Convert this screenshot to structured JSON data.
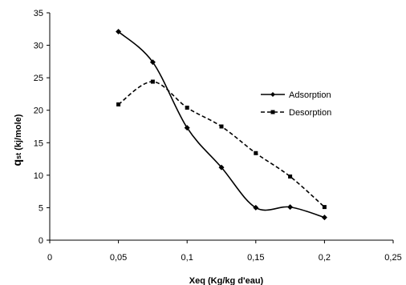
{
  "chart_data": {
    "type": "line",
    "xlabel": "Xeq (Kg/kg d'eau)",
    "ylabel_main": "q",
    "ylabel_sub": "st",
    "ylabel_rest": " (kj/mole)",
    "xlim": [
      0,
      0.25
    ],
    "ylim": [
      0,
      35
    ],
    "x_ticks": [
      0,
      0.05,
      0.1,
      0.15,
      0.2,
      0.25
    ],
    "x_tick_labels": [
      "0",
      "0,05",
      "0,1",
      "0,15",
      "0,2",
      "0,25"
    ],
    "y_ticks": [
      0,
      5,
      10,
      15,
      20,
      25,
      30,
      35
    ],
    "y_tick_labels": [
      "0",
      "5",
      "10",
      "15",
      "20",
      "25",
      "30",
      "35"
    ],
    "grid": false,
    "legend_position": "right",
    "series": [
      {
        "name": "Adsorption",
        "style": "solid",
        "marker": "diamond",
        "color": "#000000",
        "x": [
          0.05,
          0.075,
          0.1,
          0.125,
          0.15,
          0.175,
          0.2
        ],
        "y": [
          32.1,
          27.4,
          17.3,
          11.2,
          5.0,
          5.1,
          3.5
        ]
      },
      {
        "name": "Desorption",
        "style": "dashed",
        "marker": "square",
        "color": "#000000",
        "x": [
          0.05,
          0.075,
          0.1,
          0.125,
          0.15,
          0.175,
          0.2
        ],
        "y": [
          20.9,
          24.4,
          20.4,
          17.5,
          13.4,
          9.8,
          5.1
        ]
      }
    ]
  }
}
